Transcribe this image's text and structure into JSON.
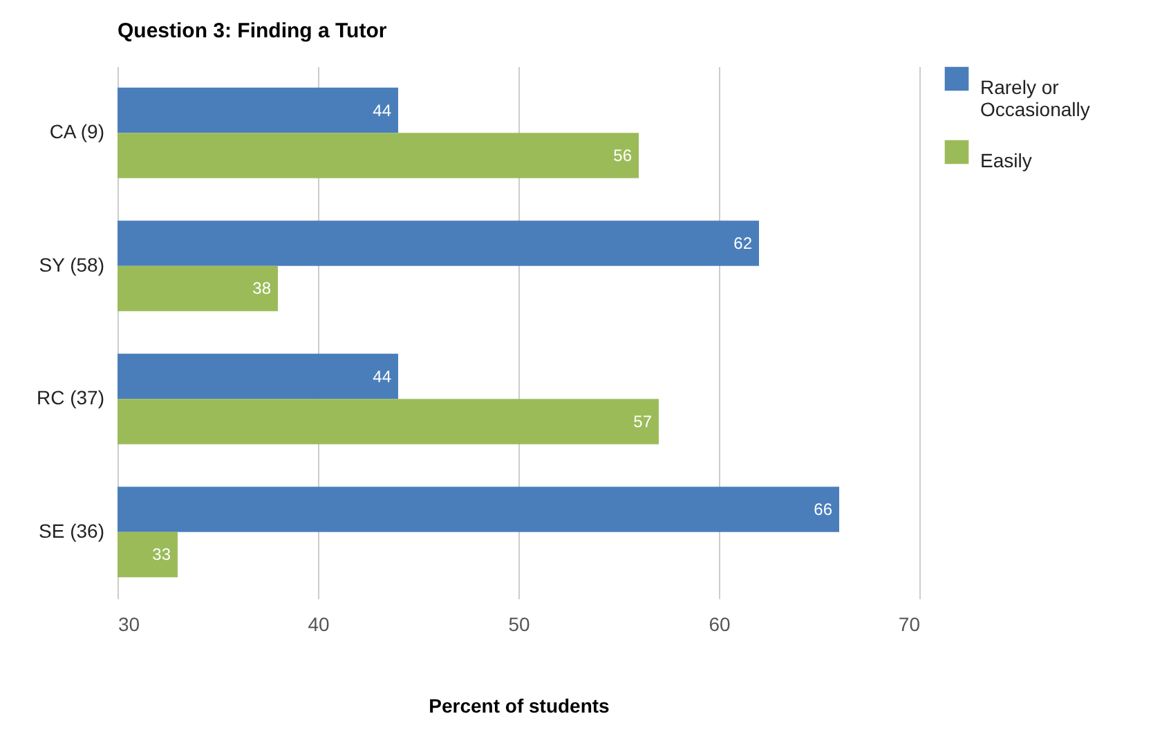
{
  "chart_data": {
    "type": "bar",
    "orientation": "horizontal",
    "title": "Question 3: Finding a Tutor",
    "xlabel": "Percent of students",
    "categories": [
      "CA (9)",
      "SY (58)",
      "RC (37)",
      "SE (36)"
    ],
    "series": [
      {
        "name": "Rarely or Occasionally",
        "color": "#4a7ebb",
        "values": [
          44,
          62,
          44,
          66
        ]
      },
      {
        "name": "Easily",
        "color": "#9bbb59",
        "values": [
          56,
          38,
          57,
          33
        ]
      }
    ],
    "xlim": [
      30,
      70
    ],
    "xticks": [
      30,
      40,
      50,
      60,
      70
    ],
    "grid": "x",
    "legend": "top right",
    "data_labels": true
  }
}
